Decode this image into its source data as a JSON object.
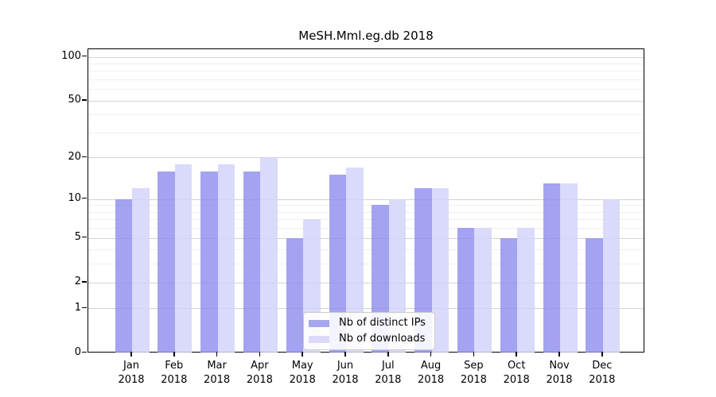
{
  "title": "MeSH.Mml.eg.db 2018",
  "legend": {
    "ips_label": "Nb of distinct IPs",
    "downloads_label": "Nb of downloads"
  },
  "colors": {
    "ips_bar": "#a6a6f0",
    "downloads_bar": "#dadaf8",
    "major_grid": "#d2d2d2",
    "minor_grid": "#efefef",
    "spine": "#000000"
  },
  "chart_data": {
    "type": "bar",
    "title": "MeSH.Mml.eg.db 2018",
    "categories": [
      "Jan",
      "Feb",
      "Mar",
      "Apr",
      "May",
      "Jun",
      "Jul",
      "Aug",
      "Sep",
      "Oct",
      "Nov",
      "Dec"
    ],
    "year": "2018",
    "series": [
      {
        "name": "Nb of distinct IPs",
        "values": [
          10,
          16,
          16,
          16,
          5,
          15,
          9,
          12,
          6,
          5,
          13,
          5
        ]
      },
      {
        "name": "Nb of downloads",
        "values": [
          12,
          18,
          18,
          20,
          7,
          17,
          10,
          12,
          6,
          6,
          13,
          10
        ]
      }
    ],
    "xlabel": "",
    "ylabel": "",
    "yscale": "log1p",
    "ylim": [
      0,
      100
    ],
    "yticks_major": [
      0,
      1,
      2,
      5,
      10,
      20,
      50,
      100
    ],
    "yticks_minor": [
      3,
      4,
      6,
      7,
      8,
      9,
      30,
      40,
      60,
      70,
      80,
      90
    ],
    "grid": true,
    "legend_position": "bottom-center"
  }
}
